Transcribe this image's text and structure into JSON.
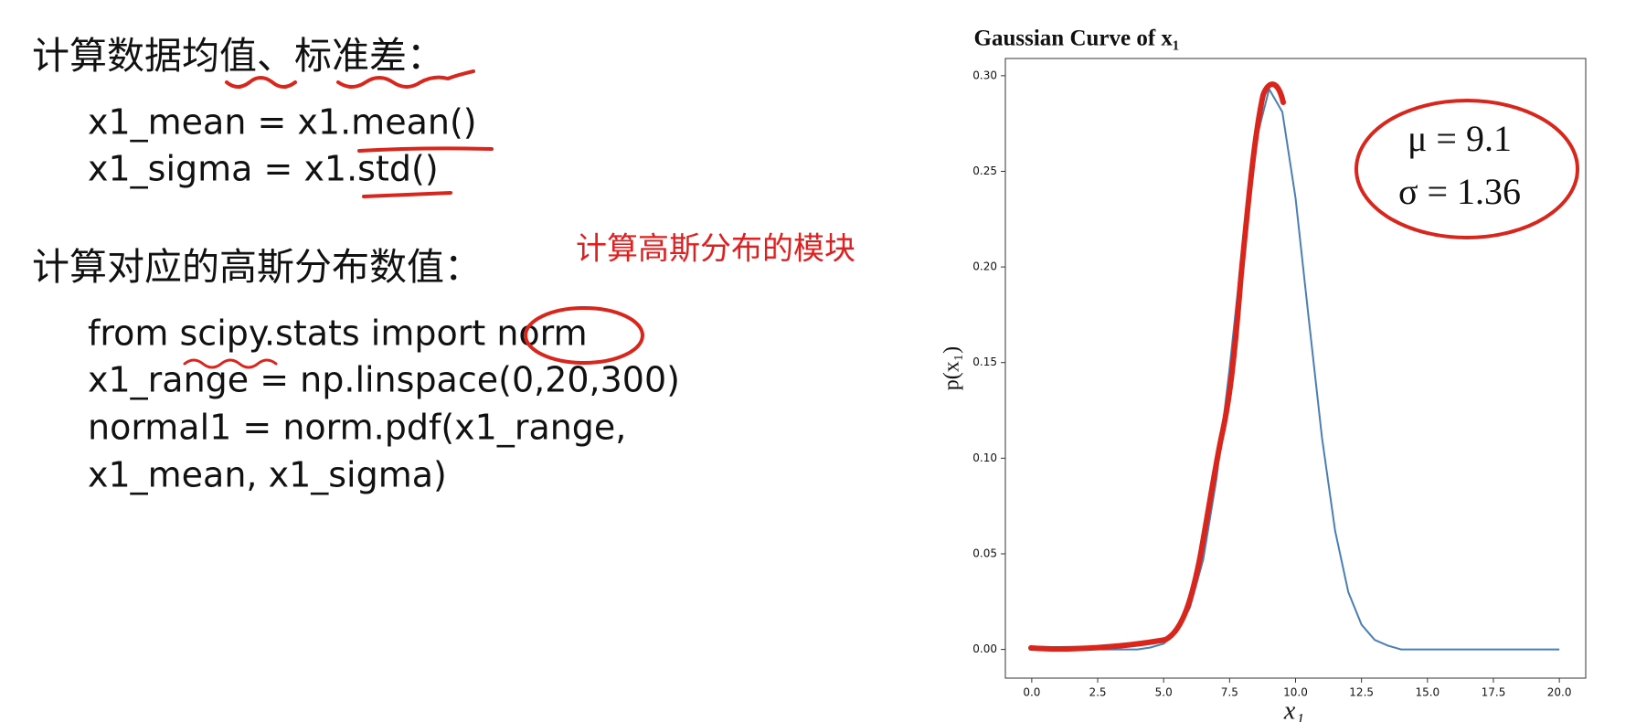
{
  "slide": {
    "heading1": "计算数据均值、标准差：",
    "code1": [
      "x1_mean = x1.mean()",
      "x1_sigma = x1.std()"
    ],
    "heading2": "计算对应的高斯分布数值：",
    "note": "计算高斯分布的模块",
    "code2": [
      "from scipy.stats import norm",
      "x1_range = np.linspace(0,20,300)",
      "normal1 = norm.pdf(x1_range,",
      "x1_mean, x1_sigma)"
    ],
    "params": [
      "μ = 9.1",
      "σ = 1.36"
    ]
  },
  "chart_data": {
    "type": "line",
    "title": "Gaussian Curve of x₁",
    "xlabel": "x₁",
    "ylabel": "p(x₁)",
    "color": "#4a7fb5",
    "x": [
      0,
      0.5,
      1,
      1.5,
      2,
      2.5,
      3,
      3.5,
      4,
      4.5,
      5,
      5.5,
      6,
      6.5,
      7,
      7.5,
      8,
      8.5,
      9,
      9.5,
      10,
      10.5,
      11,
      11.5,
      12,
      12.5,
      13,
      13.5,
      14,
      14.5,
      15,
      15.5,
      16,
      16.5,
      17,
      17.5,
      18,
      18.5,
      19,
      19.5,
      20
    ],
    "values": [
      0,
      0,
      0,
      0,
      0,
      0,
      0,
      0,
      0,
      0.001,
      0.003,
      0.009,
      0.022,
      0.047,
      0.089,
      0.147,
      0.212,
      0.266,
      0.293,
      0.281,
      0.236,
      0.173,
      0.111,
      0.062,
      0.03,
      0.013,
      0.005,
      0.002,
      0,
      0,
      0,
      0,
      0,
      0,
      0,
      0,
      0,
      0,
      0,
      0,
      0
    ],
    "xlim": [
      -1,
      21
    ],
    "ylim": [
      -0.015,
      0.309
    ],
    "xticks": [
      {
        "value": 0,
        "label": "0.0"
      },
      2.5,
      {
        "value": 5,
        "label": "5.0"
      },
      7.5,
      {
        "value": 10,
        "label": "10.0"
      },
      12.5,
      {
        "value": 15,
        "label": "15.0"
      },
      17.5,
      {
        "value": 20,
        "label": "20.0"
      }
    ],
    "yticks": [
      {
        "value": 0,
        "label": "0.00"
      },
      {
        "value": 0.05,
        "label": "0.05"
      },
      {
        "value": 0.1,
        "label": "0.10"
      },
      {
        "value": 0.15,
        "label": "0.15"
      },
      {
        "value": 0.2,
        "label": "0.20"
      },
      {
        "value": 0.25,
        "label": "0.25"
      },
      {
        "value": 0.3,
        "label": "0.30"
      }
    ],
    "grid": false
  }
}
